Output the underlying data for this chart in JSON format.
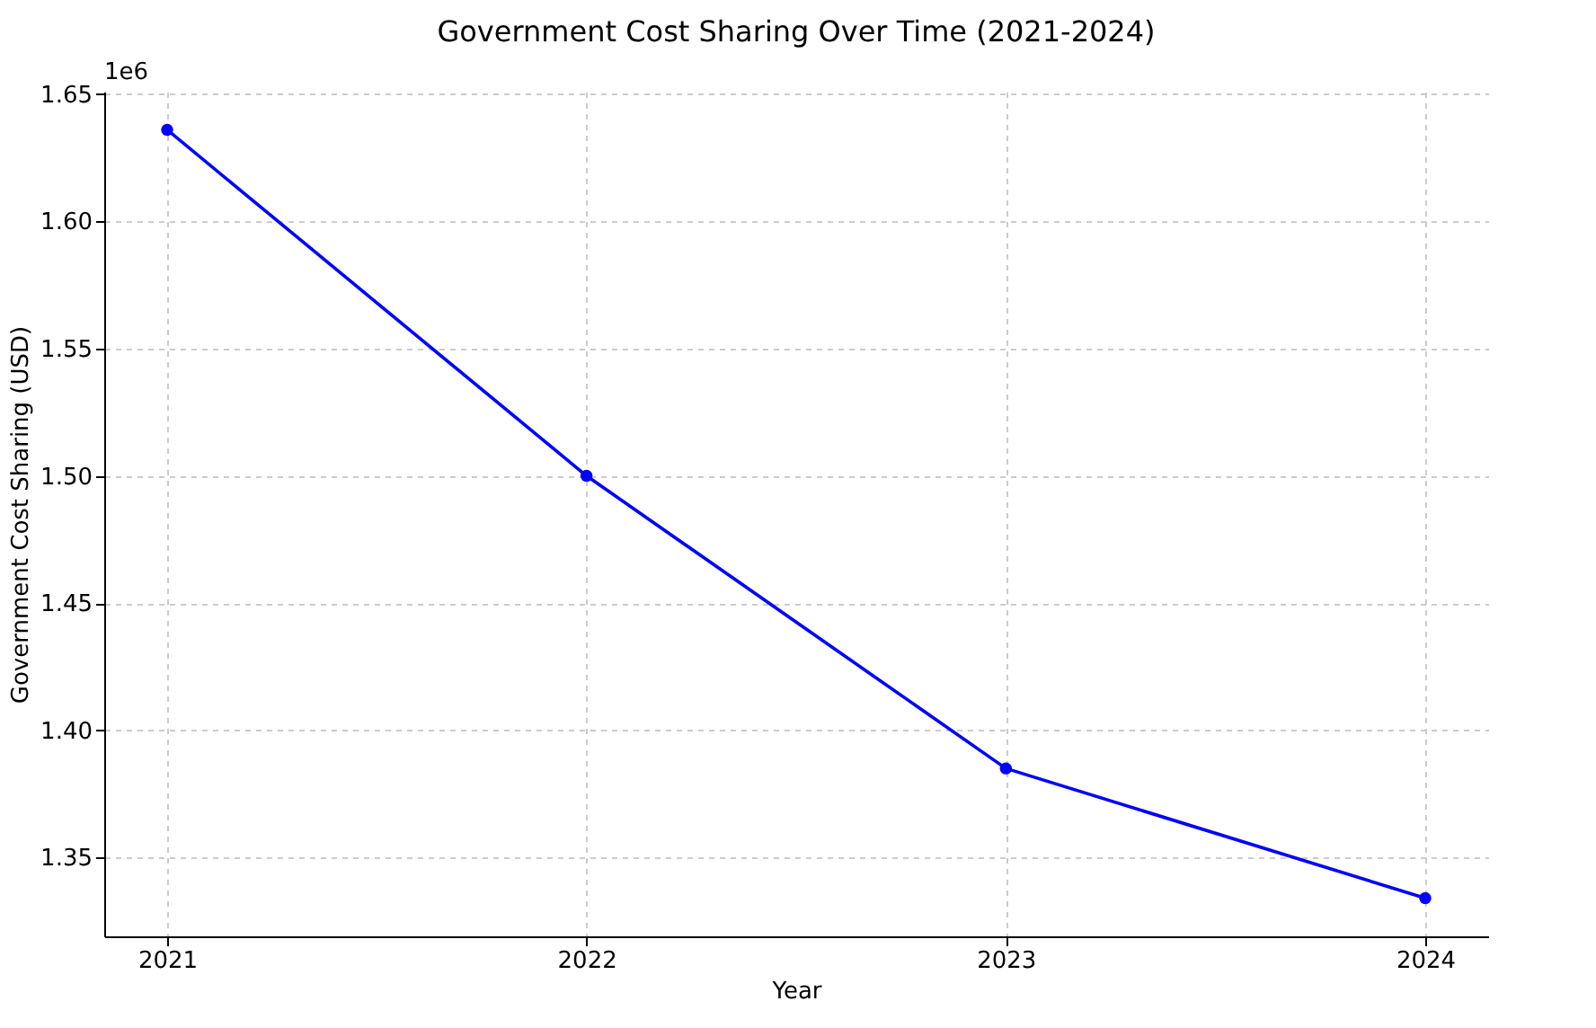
{
  "chart_data": {
    "type": "line",
    "title": "Government Cost Sharing Over Time (2021-2024)",
    "xlabel": "Year",
    "ylabel": "Government Cost Sharing (USD)",
    "x": [
      2021,
      2022,
      2023,
      2024
    ],
    "series": [
      {
        "color": "#0000ff",
        "values": [
          1.636,
          1.5,
          1.385,
          1.334
        ]
      }
    ],
    "xlim": [
      2020.85,
      2024.15
    ],
    "xticks": [
      2021,
      2022,
      2023,
      2024
    ],
    "ylim": [
      1.319,
      1.651
    ],
    "yticks": [
      {
        "value": 1.35,
        "label": "1.35"
      },
      {
        "value": 1.4,
        "label": "1.40"
      },
      {
        "value": 1.45,
        "label": "1.45"
      },
      {
        "value": 1.5,
        "label": "1.50"
      },
      {
        "value": 1.55,
        "label": "1.55"
      },
      {
        "value": 1.6,
        "label": "1.60"
      },
      {
        "value": 1.65,
        "label": "1.65"
      }
    ],
    "annotations": [
      "1e6"
    ],
    "grid": true,
    "marker": "circle",
    "line_style": "solid"
  }
}
